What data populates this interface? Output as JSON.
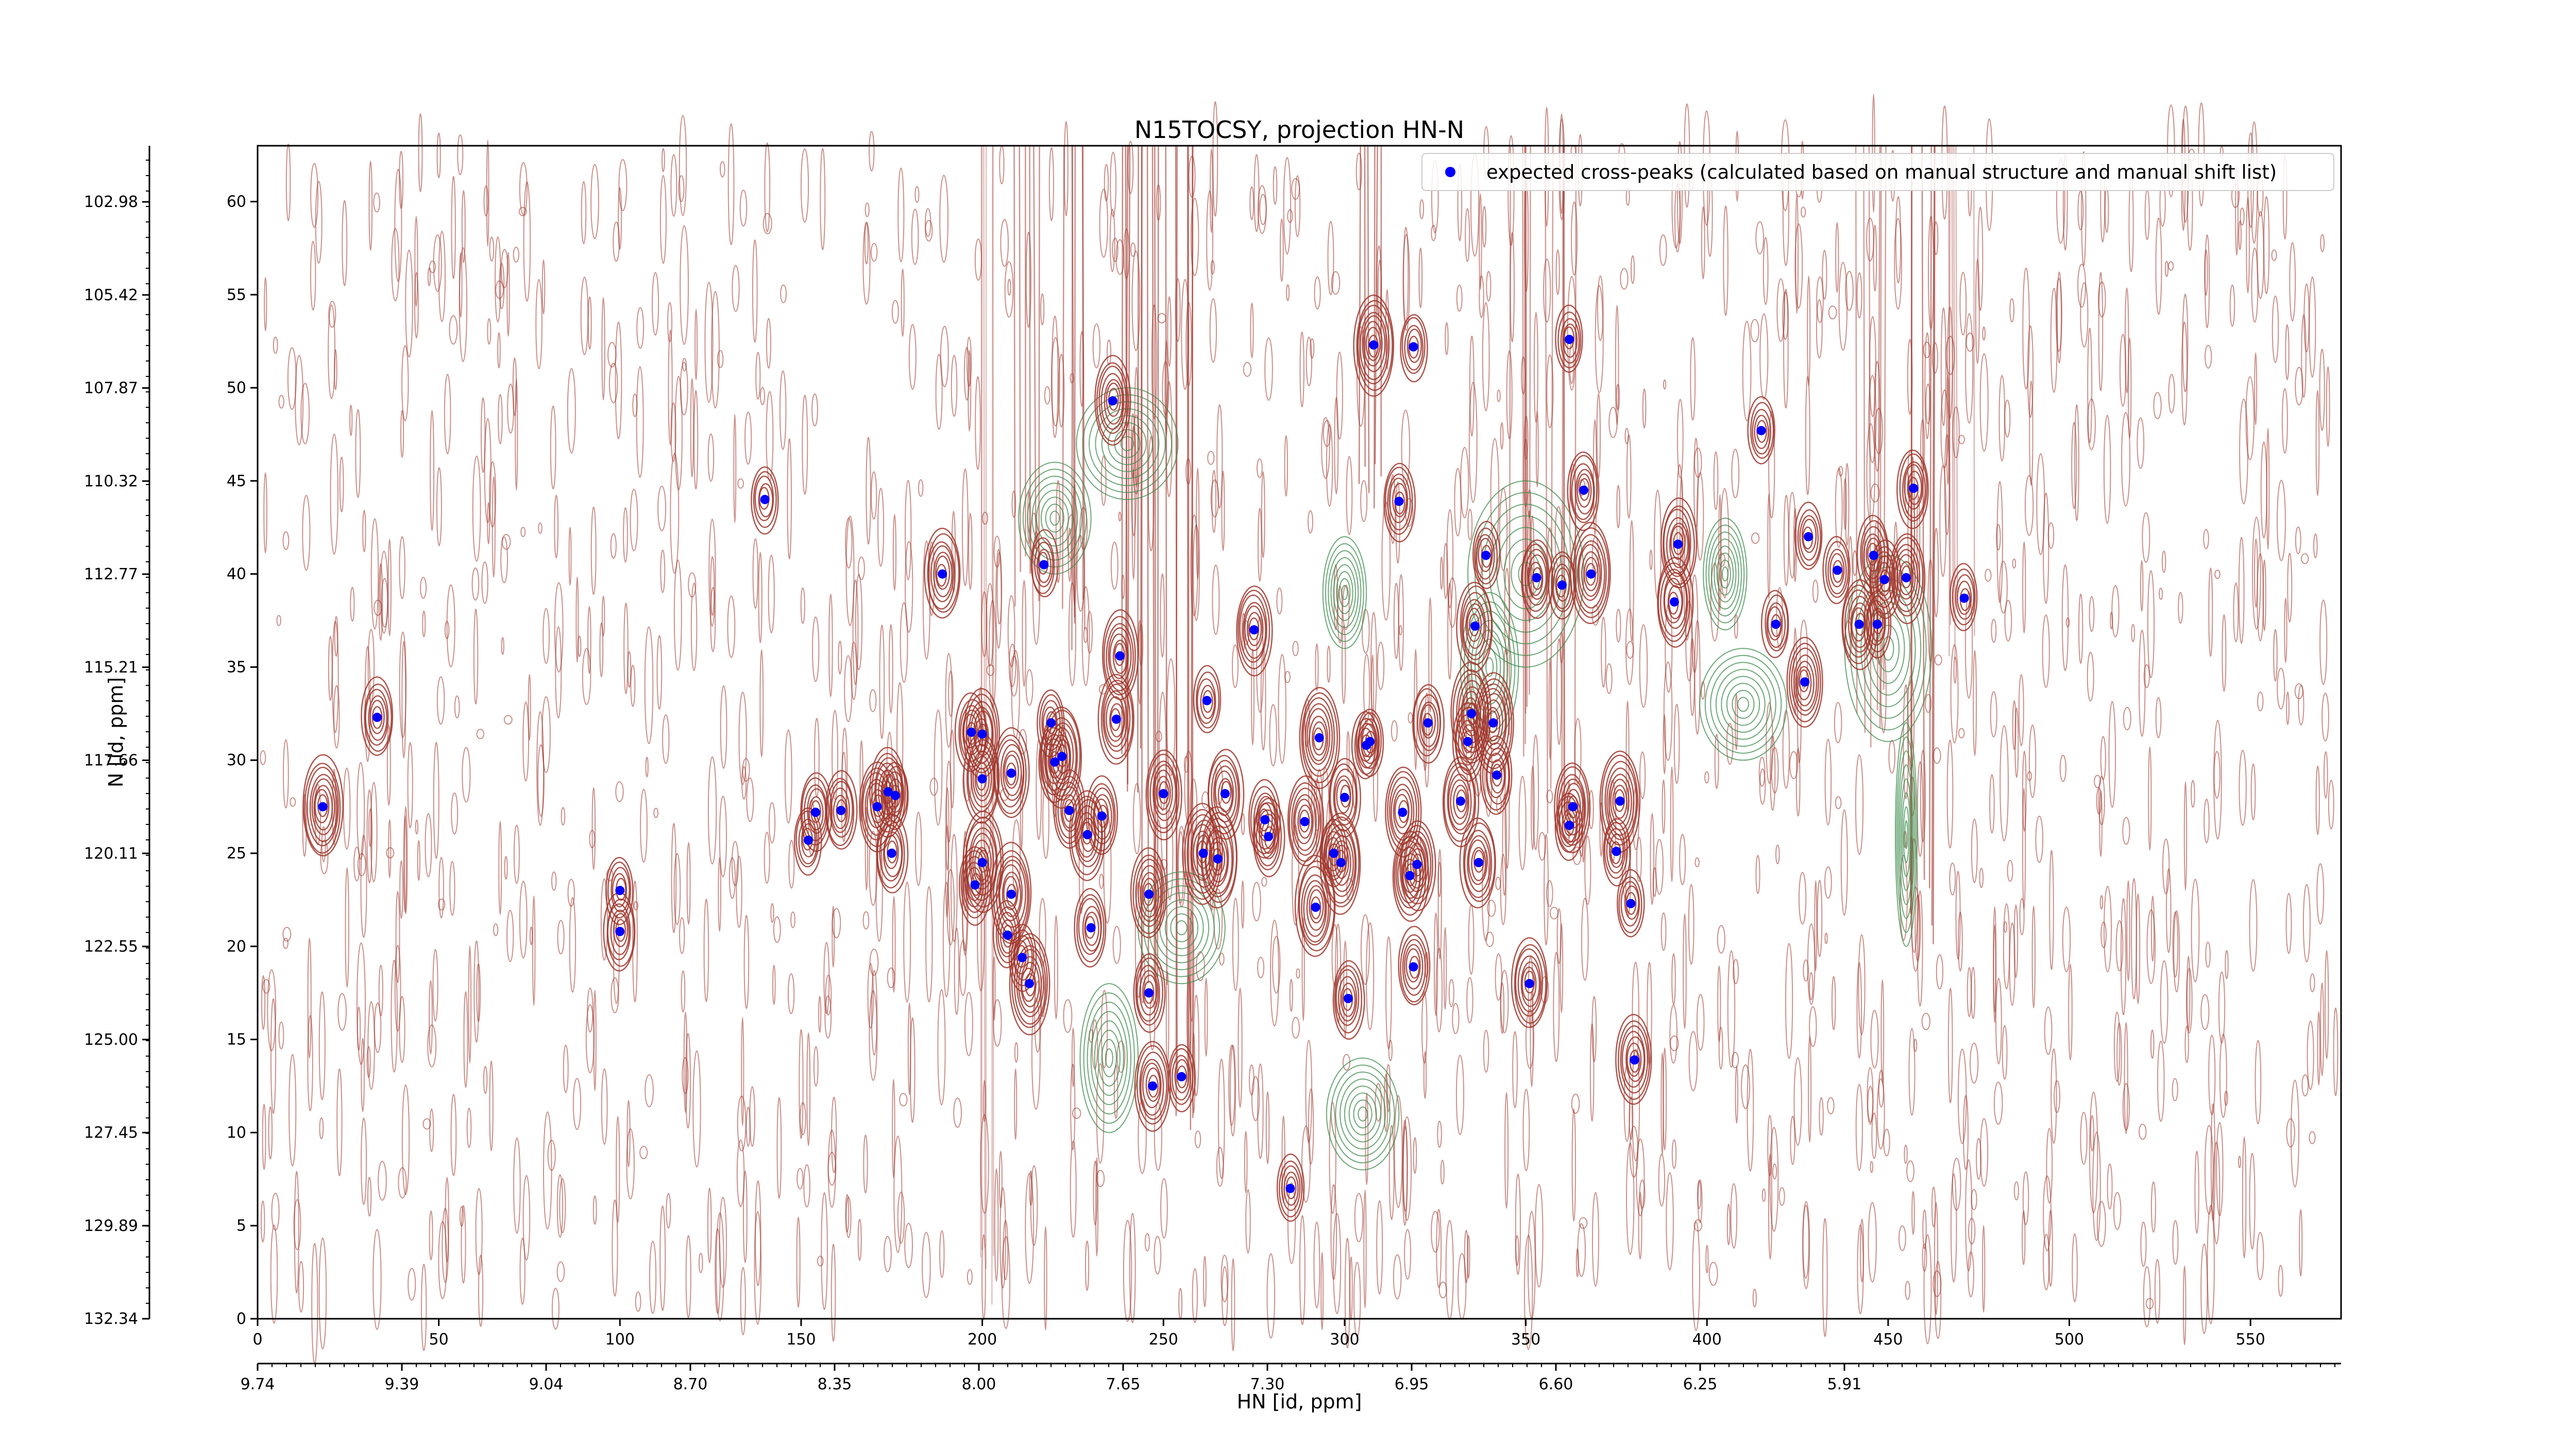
{
  "chart_data": {
    "type": "scatter",
    "title": "N15TOCSY, projection HN-N",
    "xlabel": "HN [id, ppm]",
    "ylabel": "N [id, ppm]",
    "xlim": [
      0,
      575
    ],
    "ylim": [
      0,
      63
    ],
    "x_ticks": [
      0,
      50,
      100,
      150,
      200,
      250,
      300,
      350,
      400,
      450,
      500,
      550
    ],
    "y_ticks": [
      0,
      5,
      10,
      15,
      20,
      25,
      30,
      35,
      40,
      45,
      50,
      55,
      60
    ],
    "x_ppm_ticks": [
      "9.74",
      "9.39",
      "9.04",
      "8.70",
      "8.35",
      "8.00",
      "7.65",
      "7.30",
      "6.95",
      "6.60",
      "6.25",
      "5.91"
    ],
    "y_ppm_ticks": [
      "132.34",
      "129.89",
      "127.45",
      "125.00",
      "122.55",
      "120.11",
      "117.66",
      "115.21",
      "112.77",
      "110.32",
      "107.87",
      "105.42",
      "102.98"
    ],
    "legend": {
      "position": "top-right",
      "label": "expected cross-peaks (calculated based on manual structure and manual shift list)",
      "color": "#0000ff"
    },
    "colors": {
      "positive_contour": "#a0362c",
      "negative_contour": "#3c8c4c",
      "marker": "#0000ff"
    },
    "series": [
      {
        "name": "expected cross-peaks (calculated based on manual structure and manual shift list)",
        "points": [
          [
            18,
            27.5
          ],
          [
            33,
            32.3
          ],
          [
            140,
            44.0
          ],
          [
            100,
            23.0
          ],
          [
            100,
            20.8
          ],
          [
            152,
            25.7
          ],
          [
            154,
            27.2
          ],
          [
            161,
            27.3
          ],
          [
            171,
            27.5
          ],
          [
            174,
            28.3
          ],
          [
            175,
            25.0
          ],
          [
            176,
            28.1
          ],
          [
            189,
            40.0
          ],
          [
            197,
            31.5
          ],
          [
            198,
            23.3
          ],
          [
            200,
            31.4
          ],
          [
            200,
            24.5
          ],
          [
            200,
            29.0
          ],
          [
            207,
            20.6
          ],
          [
            208,
            29.3
          ],
          [
            208,
            22.8
          ],
          [
            211,
            19.4
          ],
          [
            213,
            18.0
          ],
          [
            217,
            40.5
          ],
          [
            219,
            32.0
          ],
          [
            220,
            29.9
          ],
          [
            222,
            30.2
          ],
          [
            224,
            27.3
          ],
          [
            229,
            26.0
          ],
          [
            230,
            21.0
          ],
          [
            233,
            27.0
          ],
          [
            236,
            49.3
          ],
          [
            237,
            32.2
          ],
          [
            238,
            35.6
          ],
          [
            246,
            22.8
          ],
          [
            246,
            17.5
          ],
          [
            247,
            12.5
          ],
          [
            250,
            28.2
          ],
          [
            255,
            13.0
          ],
          [
            261,
            25.0
          ],
          [
            262,
            33.2
          ],
          [
            265,
            24.7
          ],
          [
            267,
            28.2
          ],
          [
            275,
            37.0
          ],
          [
            278,
            26.8
          ],
          [
            279,
            25.9
          ],
          [
            285,
            7.0
          ],
          [
            289,
            26.7
          ],
          [
            292,
            22.1
          ],
          [
            293,
            31.2
          ],
          [
            297,
            25.0
          ],
          [
            299,
            24.5
          ],
          [
            300,
            28.0
          ],
          [
            301,
            17.2
          ],
          [
            306,
            30.8
          ],
          [
            307,
            31.0
          ],
          [
            308,
            52.3
          ],
          [
            315,
            43.9
          ],
          [
            316,
            27.2
          ],
          [
            318,
            23.8
          ],
          [
            319,
            18.9
          ],
          [
            319,
            52.2
          ],
          [
            320,
            24.4
          ],
          [
            323,
            32.0
          ],
          [
            332,
            27.8
          ],
          [
            334,
            31.0
          ],
          [
            335,
            32.5
          ],
          [
            336,
            37.2
          ],
          [
            337,
            24.5
          ],
          [
            339,
            41.0
          ],
          [
            341,
            32.0
          ],
          [
            342,
            29.2
          ],
          [
            351,
            18.0
          ],
          [
            353,
            39.8
          ],
          [
            360,
            39.4
          ],
          [
            362,
            52.6
          ],
          [
            362,
            26.5
          ],
          [
            363,
            27.5
          ],
          [
            366,
            44.5
          ],
          [
            368,
            40.0
          ],
          [
            375,
            25.1
          ],
          [
            376,
            27.8
          ],
          [
            379,
            22.3
          ],
          [
            380,
            13.9
          ],
          [
            391,
            38.5
          ],
          [
            392,
            41.6
          ],
          [
            415,
            47.7
          ],
          [
            419,
            37.3
          ],
          [
            427,
            34.2
          ],
          [
            428,
            42.0
          ],
          [
            436,
            40.2
          ],
          [
            442,
            37.3
          ],
          [
            446,
            41.0
          ],
          [
            447,
            37.3
          ],
          [
            449,
            39.7
          ],
          [
            455,
            39.8
          ],
          [
            457,
            44.6
          ],
          [
            471,
            38.7
          ]
        ]
      }
    ]
  }
}
